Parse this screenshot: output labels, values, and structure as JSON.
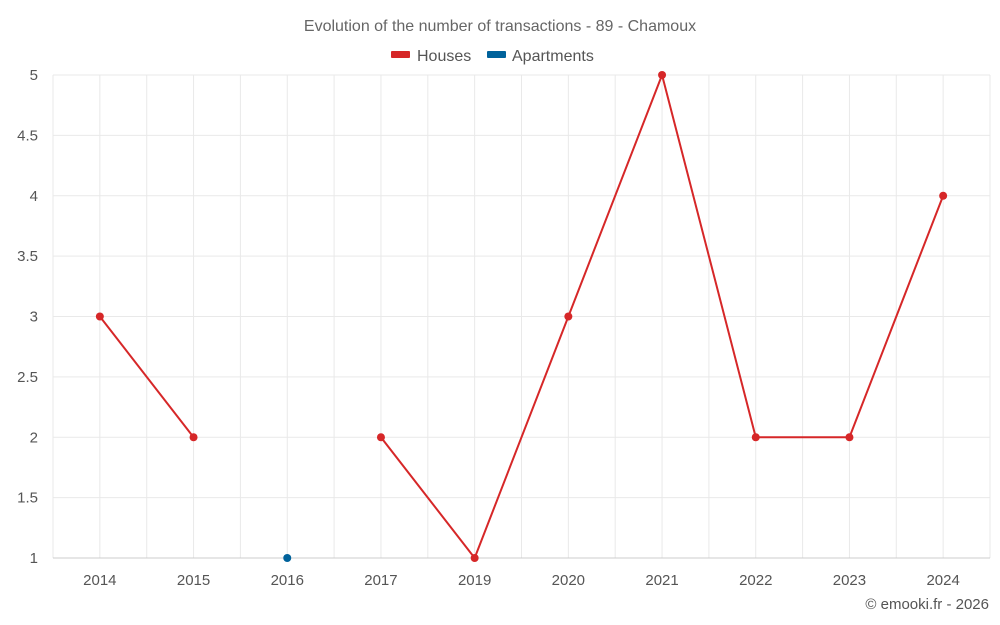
{
  "chart_data": {
    "type": "line",
    "title": "Evolution of the number of transactions - 89 - Chamoux",
    "categories": [
      "2014",
      "2015",
      "2016",
      "2017",
      "2019",
      "2020",
      "2021",
      "2022",
      "2023",
      "2024"
    ],
    "series": [
      {
        "name": "Houses",
        "color": "#d62728",
        "values": [
          3,
          2,
          null,
          2,
          1,
          3,
          5,
          2,
          2,
          4
        ]
      },
      {
        "name": "Apartments",
        "color": "#00629b",
        "values": [
          null,
          null,
          1,
          null,
          null,
          null,
          null,
          null,
          null,
          null
        ]
      }
    ],
    "ylim": [
      1,
      5
    ],
    "yticks": [
      1,
      1.5,
      2,
      2.5,
      3,
      3.5,
      4,
      4.5,
      5
    ],
    "ytick_labels": [
      "1",
      "1.5",
      "2",
      "2.5",
      "3",
      "3.5",
      "4",
      "4.5",
      "5"
    ],
    "xlabel": "",
    "ylabel": "",
    "grid": true,
    "legend_position": "top-center"
  },
  "credit": "© emooki.fr - 2026"
}
